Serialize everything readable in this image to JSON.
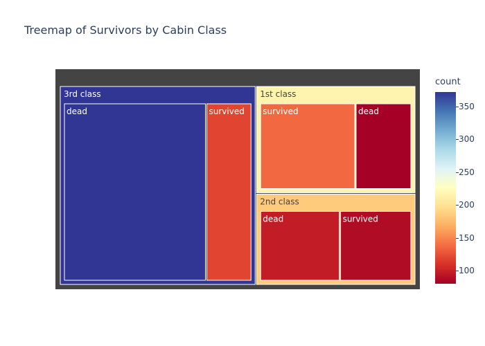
{
  "chart_data": {
    "type": "treemap",
    "title": "Treemap of Survivors by Cabin Class",
    "color_metric": "count",
    "root_color": "#444444",
    "groups": [
      {
        "label": "3rd class",
        "value": 491,
        "children": [
          {
            "label": "dead",
            "value": 372
          },
          {
            "label": "survived",
            "value": 119
          }
        ]
      },
      {
        "label": "1st class",
        "value": 216,
        "children": [
          {
            "label": "survived",
            "value": 136
          },
          {
            "label": "dead",
            "value": 80
          }
        ]
      },
      {
        "label": "2nd class",
        "value": 184,
        "children": [
          {
            "label": "dead",
            "value": 97
          },
          {
            "label": "survived",
            "value": 87
          }
        ]
      }
    ],
    "colorbar": {
      "title": "count",
      "min": 80,
      "max": 372,
      "ticks": [
        100,
        150,
        200,
        250,
        300,
        350
      ],
      "colorscale": [
        "#a50026",
        "#d73027",
        "#f46d43",
        "#fdae61",
        "#fee090",
        "#ffffbf",
        "#e0f3f8",
        "#abd9e9",
        "#74add1",
        "#4575b4",
        "#313695"
      ]
    }
  }
}
